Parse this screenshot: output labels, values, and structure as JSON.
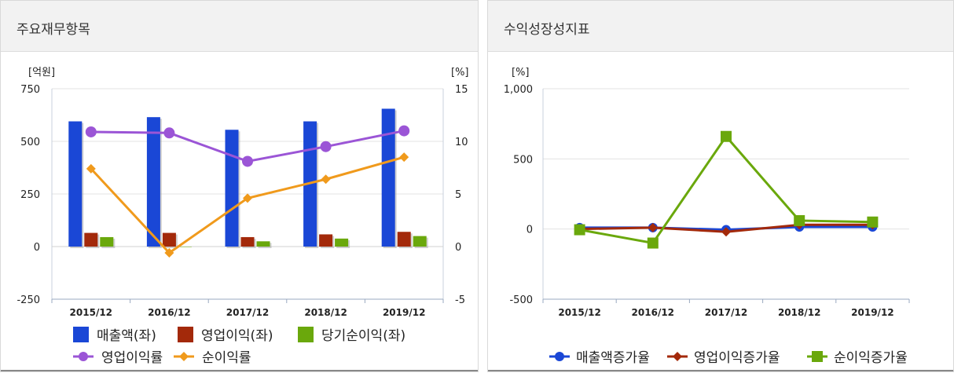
{
  "panels": {
    "left": {
      "title": "주요재무항목"
    },
    "right": {
      "title": "수익성장성지표"
    }
  },
  "chart_data": [
    {
      "type": "bar",
      "title": "주요재무항목",
      "categories": [
        "2015/12",
        "2016/12",
        "2017/12",
        "2018/12",
        "2019/12"
      ],
      "y_left": {
        "unit": "[억원]",
        "ylim": [
          -250,
          750
        ],
        "ticks": [
          "750",
          "500",
          "250",
          "0",
          "-250"
        ]
      },
      "y_right": {
        "unit": "[%]",
        "ylim": [
          -5,
          15
        ],
        "ticks": [
          "15",
          "10",
          "5",
          "0",
          "-5"
        ]
      },
      "bar_series": [
        {
          "name": "매출액(좌)",
          "color": "#1a47d6",
          "values": [
            595,
            615,
            555,
            595,
            655
          ]
        },
        {
          "name": "영업이익(좌)",
          "color": "#a3290a",
          "values": [
            65,
            65,
            45,
            58,
            70
          ]
        },
        {
          "name": "당기순이익(좌)",
          "color": "#6aa80c",
          "values": [
            45,
            0,
            25,
            38,
            50
          ]
        }
      ],
      "line_series": [
        {
          "name": "영업이익률",
          "color": "#9b55d6",
          "marker": "circle",
          "values": [
            10.9,
            10.8,
            8.1,
            9.5,
            11.0
          ]
        },
        {
          "name": "순이익률",
          "color": "#f09a1c",
          "marker": "diamond",
          "values": [
            7.4,
            -0.6,
            4.6,
            6.4,
            8.5
          ]
        }
      ]
    },
    {
      "type": "line",
      "title": "수익성장성지표",
      "categories": [
        "2015/12",
        "2016/12",
        "2017/12",
        "2018/12",
        "2019/12"
      ],
      "y": {
        "unit": "[%]",
        "ylim": [
          -500,
          1000
        ],
        "ticks": [
          "1,000",
          "500",
          "0",
          "-500"
        ]
      },
      "series": [
        {
          "name": "매출액증가율",
          "color": "#1a47d6",
          "marker": "circle",
          "values": [
            10,
            10,
            -5,
            15,
            15
          ]
        },
        {
          "name": "영업이익증가율",
          "color": "#a3290a",
          "marker": "diamond",
          "values": [
            0,
            10,
            -20,
            30,
            30
          ]
        },
        {
          "name": "순이익증가율",
          "color": "#6aa80c",
          "marker": "square",
          "values": [
            -5,
            -100,
            660,
            60,
            50
          ]
        }
      ]
    }
  ]
}
